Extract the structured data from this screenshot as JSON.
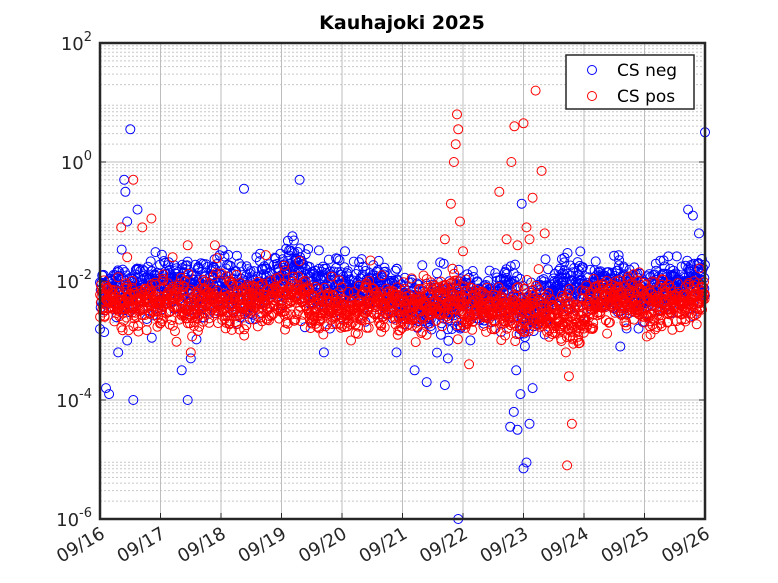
{
  "chart_data": {
    "type": "scatter",
    "title": "Kauhajoki 2025",
    "xlabel": "",
    "ylabel": "",
    "x_tick_labels": [
      "09/16",
      "09/17",
      "09/18",
      "09/19",
      "09/20",
      "09/21",
      "09/22",
      "09/23",
      "09/24",
      "09/25",
      "09/26"
    ],
    "xlim_days": [
      0,
      10
    ],
    "y_scale": "log",
    "ylim": [
      1e-06,
      100
    ],
    "y_tick_values": [
      1e-06,
      0.0001,
      0.01,
      1,
      100
    ],
    "y_tick_labels": [
      {
        "base": "10",
        "exp": "-6"
      },
      {
        "base": "10",
        "exp": "-4"
      },
      {
        "base": "10",
        "exp": "-2"
      },
      {
        "base": "10",
        "exp": "0"
      },
      {
        "base": "10",
        "exp": "2"
      }
    ],
    "grid": true,
    "minor_grid": true,
    "legend_position": "top-right",
    "marker": "open-circle",
    "series": [
      {
        "name": "CS neg",
        "color": "#0000ff",
        "baseline_log10": [
          [
            0.0,
            -2.2
          ],
          [
            0.5,
            -2.1
          ],
          [
            1.0,
            -2.05
          ],
          [
            1.5,
            -2.05
          ],
          [
            2.0,
            -2.1
          ],
          [
            2.5,
            -2.1
          ],
          [
            3.0,
            -2.0
          ],
          [
            3.2,
            -1.7
          ],
          [
            3.4,
            -2.0
          ],
          [
            3.6,
            -2.1
          ],
          [
            4.0,
            -2.1
          ],
          [
            4.5,
            -2.05
          ],
          [
            5.0,
            -2.3
          ],
          [
            5.3,
            -2.4
          ],
          [
            5.6,
            -2.35
          ],
          [
            6.0,
            -2.35
          ],
          [
            6.5,
            -2.3
          ],
          [
            6.8,
            -2.1
          ],
          [
            7.0,
            -2.6
          ],
          [
            7.3,
            -2.4
          ],
          [
            7.6,
            -2.0
          ],
          [
            8.0,
            -2.05
          ],
          [
            8.5,
            -2.05
          ],
          [
            9.0,
            -2.2
          ],
          [
            9.5,
            -2.0
          ],
          [
            10.0,
            -2.0
          ]
        ],
        "outliers": [
          [
            0.1,
            -2.4
          ],
          [
            0.18,
            -2.0
          ],
          [
            0.25,
            -1.9
          ],
          [
            0.3,
            -3.2
          ],
          [
            0.45,
            -3.0
          ],
          [
            0.55,
            -4.0
          ],
          [
            0.1,
            -3.8
          ],
          [
            0.15,
            -3.9
          ],
          [
            0.4,
            -0.3
          ],
          [
            0.42,
            -0.5
          ],
          [
            0.45,
            -1.0
          ],
          [
            0.5,
            0.55
          ],
          [
            0.62,
            -0.8
          ],
          [
            1.45,
            -4.0
          ],
          [
            1.5,
            -3.3
          ],
          [
            1.35,
            -3.5
          ],
          [
            2.38,
            -0.45
          ],
          [
            3.3,
            -0.3
          ],
          [
            3.4,
            -1.55
          ],
          [
            3.7,
            -3.2
          ],
          [
            3.8,
            -2.8
          ],
          [
            4.05,
            -1.5
          ],
          [
            4.9,
            -3.2
          ],
          [
            5.2,
            -3.5
          ],
          [
            5.4,
            -3.7
          ],
          [
            5.7,
            -3.75
          ],
          [
            5.75,
            -3.3
          ],
          [
            5.92,
            -6.0
          ],
          [
            6.78,
            -4.45
          ],
          [
            6.84,
            -4.2
          ],
          [
            6.9,
            -4.5
          ],
          [
            6.95,
            -3.9
          ],
          [
            7.0,
            -5.15
          ],
          [
            7.05,
            -5.05
          ],
          [
            6.88,
            -3.5
          ],
          [
            6.97,
            -0.7
          ],
          [
            7.1,
            -4.4
          ],
          [
            7.15,
            -3.8
          ],
          [
            7.35,
            -2.9
          ],
          [
            9.72,
            -0.8
          ],
          [
            9.8,
            -0.9
          ],
          [
            9.9,
            -1.2
          ],
          [
            10.0,
            0.5
          ],
          [
            8.6,
            -3.1
          ],
          [
            8.9,
            -2.8
          ]
        ]
      },
      {
        "name": "CS pos",
        "color": "#ff0000",
        "baseline_log10": [
          [
            0.0,
            -2.3
          ],
          [
            0.5,
            -2.4
          ],
          [
            1.0,
            -2.35
          ],
          [
            1.5,
            -2.4
          ],
          [
            2.0,
            -2.4
          ],
          [
            2.5,
            -2.4
          ],
          [
            3.0,
            -2.25
          ],
          [
            3.3,
            -2.2
          ],
          [
            3.5,
            -2.5
          ],
          [
            3.8,
            -2.45
          ],
          [
            4.0,
            -2.5
          ],
          [
            4.5,
            -2.4
          ],
          [
            5.0,
            -2.45
          ],
          [
            5.5,
            -2.4
          ],
          [
            5.8,
            -2.3
          ],
          [
            6.0,
            -2.45
          ],
          [
            6.5,
            -2.45
          ],
          [
            7.0,
            -2.5
          ],
          [
            7.5,
            -2.55
          ],
          [
            7.9,
            -2.7
          ],
          [
            8.2,
            -2.4
          ],
          [
            8.5,
            -2.3
          ],
          [
            9.0,
            -2.4
          ],
          [
            9.5,
            -2.35
          ],
          [
            10.0,
            -2.3
          ]
        ],
        "outliers": [
          [
            0.35,
            -1.1
          ],
          [
            0.45,
            -1.6
          ],
          [
            0.55,
            -0.3
          ],
          [
            0.7,
            -1.1
          ],
          [
            0.85,
            -0.95
          ],
          [
            1.2,
            -1.6
          ],
          [
            1.45,
            -1.4
          ],
          [
            1.9,
            -1.4
          ],
          [
            1.5,
            -3.2
          ],
          [
            5.7,
            -1.3
          ],
          [
            5.8,
            -0.7
          ],
          [
            5.85,
            0.0
          ],
          [
            5.88,
            0.3
          ],
          [
            5.9,
            0.8
          ],
          [
            5.92,
            0.55
          ],
          [
            5.95,
            -1.0
          ],
          [
            6.0,
            -1.5
          ],
          [
            6.1,
            -3.4
          ],
          [
            6.6,
            -0.5
          ],
          [
            6.72,
            -1.3
          ],
          [
            6.8,
            0.0
          ],
          [
            6.85,
            0.6
          ],
          [
            6.9,
            -1.4
          ],
          [
            7.0,
            0.65
          ],
          [
            7.05,
            -1.1
          ],
          [
            7.1,
            -1.3
          ],
          [
            7.15,
            -0.6
          ],
          [
            7.2,
            1.2
          ],
          [
            7.25,
            -1.8
          ],
          [
            7.3,
            -0.15
          ],
          [
            7.35,
            -1.2
          ],
          [
            7.7,
            -3.2
          ],
          [
            7.75,
            -3.6
          ],
          [
            7.8,
            -4.4
          ],
          [
            7.72,
            -5.1
          ],
          [
            8.0,
            -2.8
          ],
          [
            2.15,
            -2.0
          ],
          [
            3.4,
            -2.0
          ],
          [
            9.1,
            -2.9
          ]
        ]
      }
    ]
  }
}
